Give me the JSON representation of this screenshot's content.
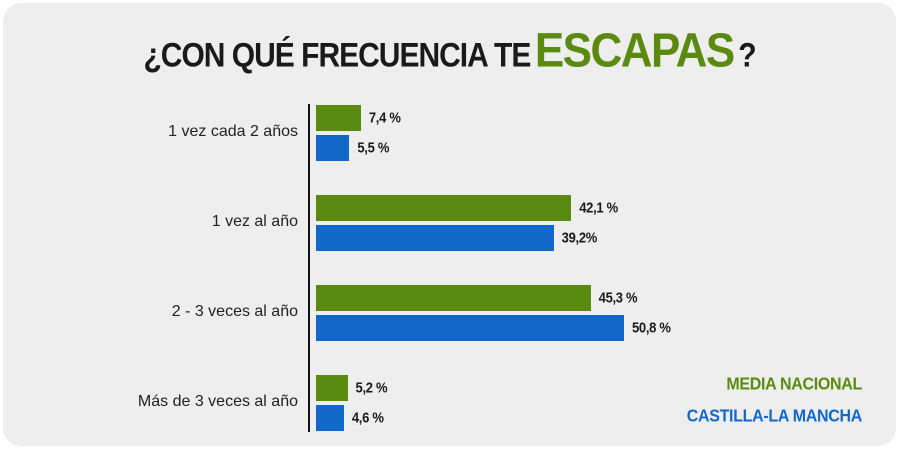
{
  "chart_data": {
    "type": "bar",
    "orientation": "horizontal",
    "title": {
      "prefix": "¿CON QUÉ FRECUENCIA TE",
      "accent": "ESCAPAS",
      "suffix": "?"
    },
    "categories": [
      "1 vez cada 2 años",
      "1 vez al año",
      "2 - 3 veces al año",
      "Más de 3 veces al año"
    ],
    "series": [
      {
        "name": "MEDIA NACIONAL",
        "color": "#5a8a0f",
        "values": [
          7.4,
          42.1,
          45.3,
          5.2
        ],
        "labels": [
          "7,4 %",
          "42,1 %",
          "45,3 %",
          "5,2 %"
        ]
      },
      {
        "name": "CASTILLA-LA MANCHA",
        "color": "#1268c8",
        "values": [
          5.5,
          39.2,
          50.8,
          4.6
        ],
        "labels": [
          "5,5 %",
          "39,2%",
          "50,8 %",
          "4,6 %"
        ]
      }
    ],
    "xlim": [
      0,
      50.8
    ],
    "grid": false,
    "legend_position": "bottom-right"
  },
  "colors": {
    "title_accent": "#5a8a0f",
    "background": "#eeeeee"
  }
}
